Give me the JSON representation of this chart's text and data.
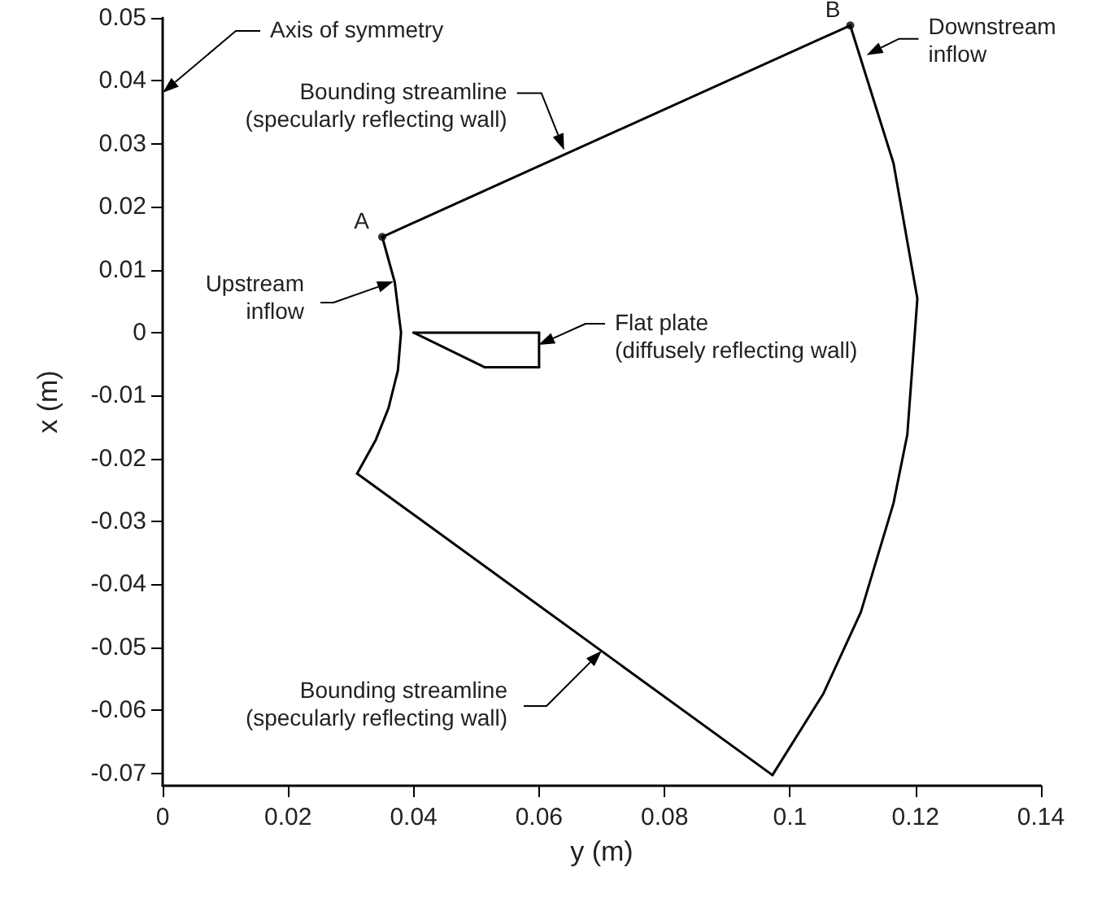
{
  "chart_data": {
    "type": "line",
    "xlabel": "y (m)",
    "ylabel": "x (m)",
    "xlim": [
      0,
      0.14
    ],
    "xticks": [
      0,
      0.02,
      0.04,
      0.06,
      0.08,
      0.1,
      0.12,
      0.14
    ],
    "ylim": [
      -0.072,
      0.05
    ],
    "yticks": [
      0.05,
      0.04,
      0.03,
      0.02,
      0.01,
      0,
      -0.01,
      -0.02,
      -0.03,
      -0.04,
      -0.05,
      -0.06,
      -0.07
    ],
    "grid": false,
    "line_style": "solid",
    "series": [
      {
        "color": "#000000",
        "x": [
          0.035,
          0.1096
        ],
        "values": [
          0.0152,
          0.0488
        ]
      },
      {
        "color": "#000000",
        "x": [
          0.1096,
          0.1165,
          0.1203,
          0.1187,
          0.1165,
          0.1113,
          0.1053,
          0.0972
        ],
        "values": [
          0.0488,
          0.0269,
          0.0054,
          -0.0162,
          -0.0271,
          -0.0444,
          -0.0574,
          -0.0703
        ]
      },
      {
        "color": "#000000",
        "x": [
          0.0972,
          0.031
        ],
        "values": [
          -0.0703,
          -0.0224
        ]
      },
      {
        "color": "#000000",
        "x": [
          0.031,
          0.034,
          0.036,
          0.0375,
          0.038,
          0.037,
          0.035
        ],
        "values": [
          -0.0224,
          -0.017,
          -0.012,
          -0.006,
          0,
          0.008,
          0.0152
        ]
      },
      {
        "color": "#000000",
        "x": [
          0.04,
          0.06
        ],
        "values": [
          0,
          0
        ]
      },
      {
        "color": "#000000",
        "x": [
          0.06,
          0.06
        ],
        "values": [
          0,
          -0.0055
        ]
      },
      {
        "color": "#000000",
        "x": [
          0.06,
          0.0513
        ],
        "values": [
          -0.0055,
          -0.0055
        ]
      },
      {
        "color": "#000000",
        "x": [
          0.0513,
          0.04
        ],
        "values": [
          -0.0055,
          0
        ]
      },
      {
        "type": "scatter",
        "marker": "circle",
        "color": "#000000",
        "x": [
          0.035,
          0.1096
        ],
        "values": [
          0.0152,
          0.0488
        ]
      }
    ],
    "annotations": [
      "Axis of symmetry",
      {
        "text": "Bounding streamline\n(specularly reflecting wall)",
        "x": 0.064,
        "y": 0.029
      },
      "Upstream\ninflow",
      "Flat plate\n(diffusely reflecting wall)",
      {
        "text": "Downstream\ninflow",
        "x": 0.1122,
        "y": 0.0441
      },
      "Bounding streamline\n(specularly reflecting wall)",
      {
        "text": "A",
        "x": 0.035,
        "y": 0.0152
      },
      {
        "text": "B",
        "x": 0.1096,
        "y": 0.0488
      }
    ]
  }
}
